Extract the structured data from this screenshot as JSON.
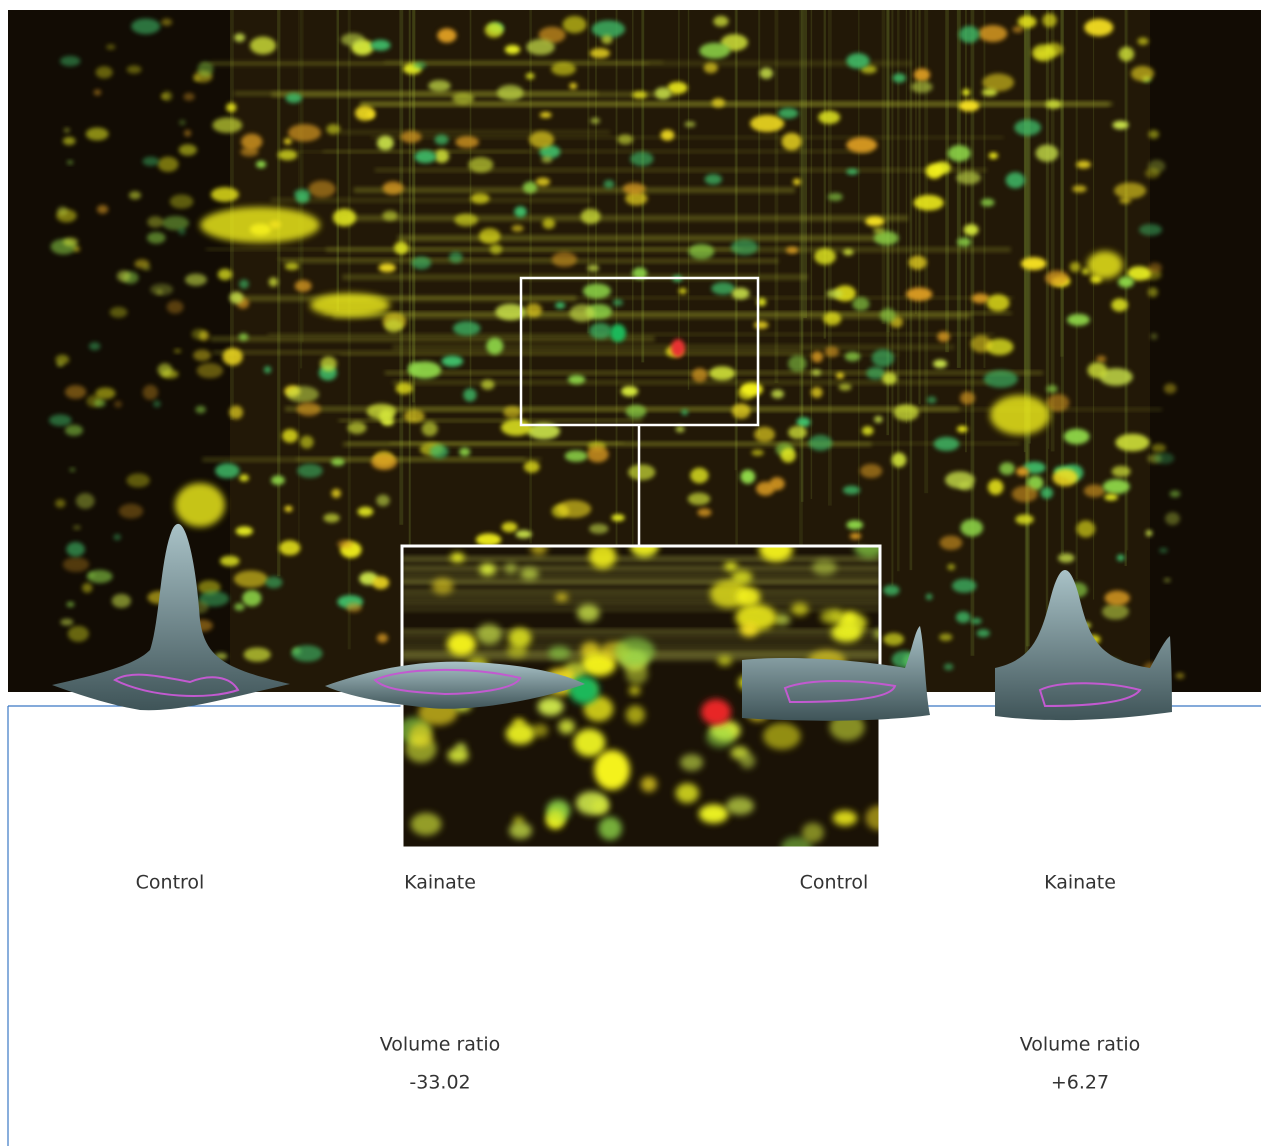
{
  "panels": [
    {
      "left_label": "Control",
      "right_label": "Kainate",
      "ratio_label": "Volume ratio",
      "ratio_value": "-33.02"
    },
    {
      "left_label": "Control",
      "right_label": "Kainate",
      "ratio_label": "Volume ratio",
      "ratio_value": "+6.27"
    }
  ]
}
